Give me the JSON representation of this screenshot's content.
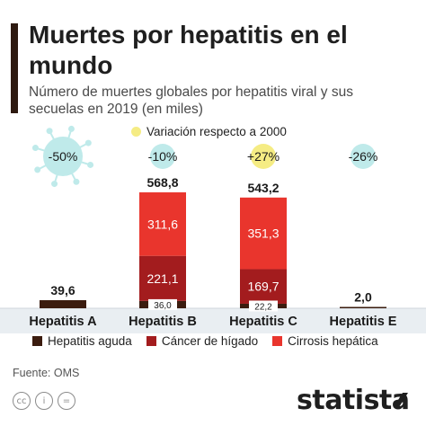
{
  "header": {
    "title": "Muertes por hepatitis en el mundo",
    "subtitle": "Número de muertes globales por hepatitis viral y sus secuelas en 2019 (en miles)"
  },
  "legend_top": {
    "label": "Variación respecto a 2000",
    "color": "#f5ec84"
  },
  "legend_bottom": [
    {
      "label": "Hepatitis aguda",
      "color": "#3b1c0f"
    },
    {
      "label": "Cáncer de hígado",
      "color": "#a31c1e"
    },
    {
      "label": "Cirrosis hepática",
      "color": "#e9352d"
    }
  ],
  "chart_data": {
    "type": "bar",
    "stacked": true,
    "categories": [
      "Hepatitis A",
      "Hepatitis B",
      "Hepatitis C",
      "Hepatitis E"
    ],
    "series": [
      {
        "name": "Hepatitis aguda",
        "values": [
          39.6,
          36.0,
          22.2,
          2.0
        ],
        "color": "#3b1c0f"
      },
      {
        "name": "Cáncer de hígado",
        "values": [
          0,
          221.1,
          169.7,
          0
        ],
        "color": "#a31c1e"
      },
      {
        "name": "Cirrosis hepática",
        "values": [
          0,
          311.6,
          351.3,
          0
        ],
        "color": "#e9352d"
      }
    ],
    "segment_labels": [
      [
        null,
        "36,0",
        "22,2",
        null
      ],
      [
        null,
        "221,1",
        "169,7",
        null
      ],
      [
        null,
        "311,6",
        "351,3",
        null
      ]
    ],
    "totals": [
      39.6,
      568.8,
      543.2,
      2.0
    ],
    "total_labels": [
      "39,6",
      "568,8",
      "543,2",
      "2,0"
    ],
    "variation": [
      "-50%",
      "-10%",
      "+27%",
      "-26%"
    ],
    "variation_colors": [
      "#bfeaea",
      "#bfeaea",
      "#f5ec84",
      "#bfeaea"
    ],
    "ylim": [
      0,
      600
    ]
  },
  "source": "Fuente: OMS",
  "brand": "statista"
}
